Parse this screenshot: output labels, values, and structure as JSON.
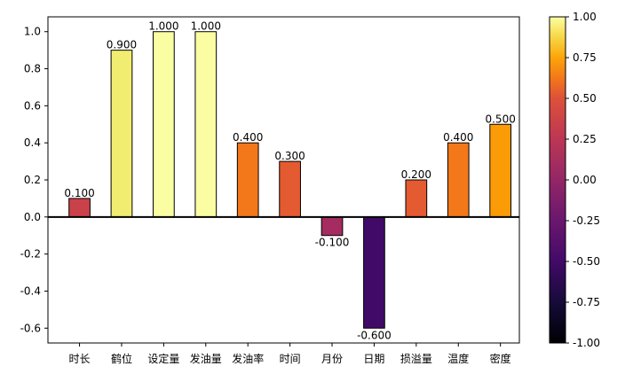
{
  "chart_data": {
    "type": "bar",
    "title": "",
    "xlabel": "",
    "ylabel": "",
    "categories": [
      "时长",
      "鹤位",
      "设定量",
      "发油量",
      "发油率",
      "时间",
      "月份",
      "日期",
      "损溢量",
      "温度",
      "密度"
    ],
    "values": [
      0.1,
      0.9,
      1.0,
      1.0,
      0.4,
      0.3,
      -0.1,
      -0.6,
      0.2,
      0.4,
      0.5
    ],
    "value_labels": [
      "0.100",
      "0.900",
      "1.000",
      "1.000",
      "0.400",
      "0.300",
      "-0.100",
      "-0.600",
      "0.200",
      "0.400",
      "0.500"
    ],
    "bar_colors": [
      "#cb4149",
      "#f1ed71",
      "#fbfda2",
      "#fbfda2",
      "#f37819",
      "#e45a31",
      "#a52c60",
      "#420a68",
      "#e45a31",
      "#f37819",
      "#fb9b06"
    ],
    "ylim": [
      -0.68,
      1.08
    ],
    "yticks": [
      "-0.6",
      "-0.4",
      "-0.2",
      "0.0",
      "0.2",
      "0.4",
      "0.6",
      "0.8",
      "1.0"
    ],
    "ytick_values": [
      -0.6,
      -0.4,
      -0.2,
      0,
      0.2,
      0.4,
      0.6,
      0.8,
      1.0
    ],
    "grid": false,
    "colorbar": {
      "colormap": "inferno",
      "range": [
        -1.0,
        1.0
      ],
      "ticks": [
        "1.00",
        "0.75",
        "0.50",
        "0.25",
        "0.00",
        "-0.25",
        "-0.50",
        "-0.75",
        "-1.00"
      ],
      "tick_values": [
        1.0,
        0.75,
        0.5,
        0.25,
        0,
        -0.25,
        -0.5,
        -0.75,
        -1.0
      ]
    }
  }
}
